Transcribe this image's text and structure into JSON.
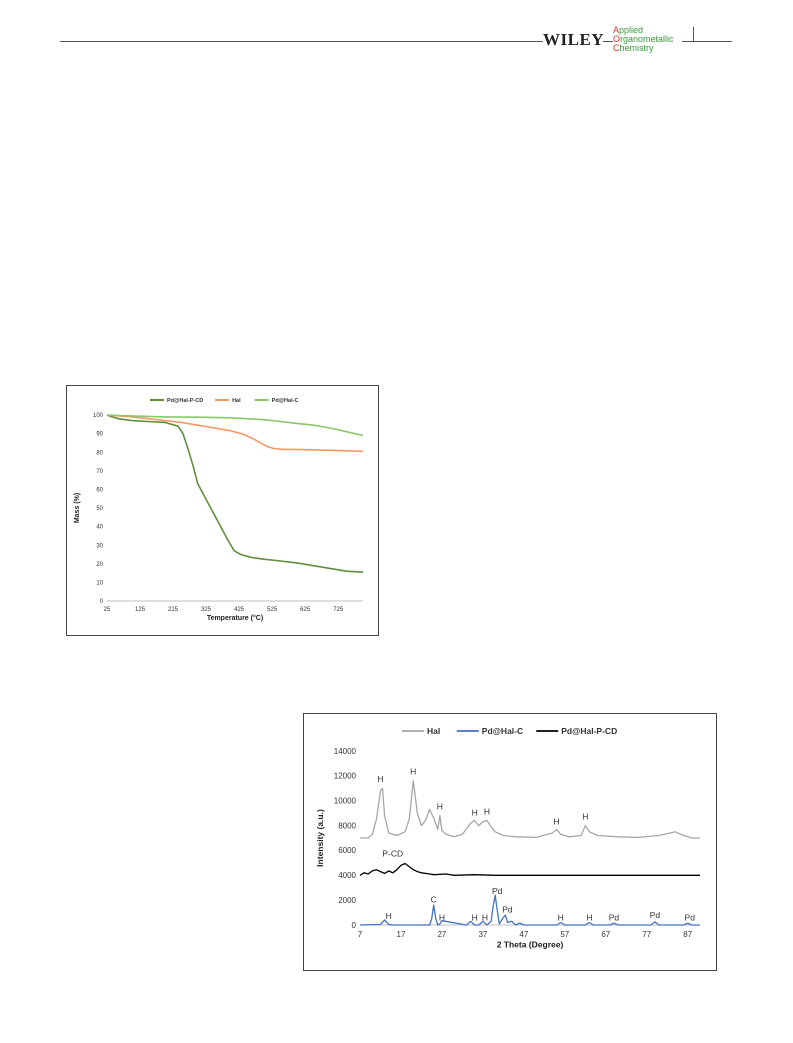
{
  "header": {
    "publisher": "WILEY",
    "journal_lines": [
      "Applied",
      "Organometallic",
      "Chemistry"
    ]
  },
  "chart_data": [
    {
      "type": "line",
      "title": "",
      "xlabel": "Temperature  (°C)",
      "ylabel": "Mass (%)",
      "xlim": [
        25,
        800
      ],
      "ylim": [
        0,
        100
      ],
      "xticks": [
        "25",
        "125",
        "225",
        "325",
        "425",
        "525",
        "625",
        "725"
      ],
      "yticks": [
        "0",
        "10",
        "20",
        "30",
        "40",
        "50",
        "60",
        "70",
        "80",
        "90",
        "100"
      ],
      "legend_position": "top",
      "series": [
        {
          "name": "Pd@Hal-P-CD",
          "color": "#5f8f3d",
          "x": [
            25,
            40,
            60,
            80,
            100,
            150,
            200,
            240,
            255,
            270,
            285,
            300,
            330,
            360,
            390,
            410,
            430,
            460,
            500,
            550,
            600,
            650,
            700,
            750,
            800
          ],
          "y": [
            100,
            99,
            98,
            97.5,
            97,
            96.5,
            96,
            94,
            90,
            82,
            73,
            63,
            53,
            43,
            33,
            27,
            25,
            23.5,
            22.5,
            21.5,
            20.5,
            19,
            17.5,
            16,
            15.5
          ]
        },
        {
          "name": "Hal",
          "color": "#f39a63",
          "x": [
            25,
            60,
            100,
            150,
            200,
            250,
            300,
            350,
            400,
            440,
            470,
            490,
            510,
            530,
            560,
            600,
            700,
            800
          ],
          "y": [
            100,
            99.5,
            99,
            98,
            97,
            96,
            94.5,
            93,
            91.5,
            89.5,
            87,
            85,
            83,
            82,
            81.5,
            81.5,
            81,
            80.5
          ]
        },
        {
          "name": "Pd@Hal-C",
          "color": "#8dc56a",
          "x": [
            25,
            100,
            200,
            300,
            400,
            500,
            550,
            600,
            650,
            700,
            750,
            800
          ],
          "y": [
            100,
            99.5,
            99,
            98.8,
            98.5,
            97.5,
            96.5,
            95.5,
            94.5,
            93,
            91,
            89
          ]
        }
      ]
    },
    {
      "type": "line",
      "title": "",
      "xlabel": "2 Theta (Degree)",
      "ylabel": "Intensity (a.u.)",
      "xlim": [
        7,
        90
      ],
      "ylim": [
        0,
        14000
      ],
      "xticks": [
        "7",
        "17",
        "27",
        "37",
        "47",
        "57",
        "67",
        "77",
        "87"
      ],
      "yticks": [
        "0",
        "2000",
        "4000",
        "6000",
        "8000",
        "10000",
        "12000",
        "14000"
      ],
      "legend_position": "top",
      "series": [
        {
          "name": "Hal",
          "color": "#a6a6a6",
          "x": [
            7,
            9,
            10,
            11,
            12,
            12.5,
            13,
            14,
            16,
            18,
            19,
            20,
            21,
            22,
            23,
            24,
            25,
            26,
            26.5,
            27,
            28,
            30,
            32,
            34,
            35,
            36,
            37,
            38,
            39,
            40,
            42,
            45,
            50,
            54,
            55,
            56,
            58,
            61,
            62,
            63,
            65,
            70,
            75,
            80,
            84,
            86,
            88,
            90
          ],
          "y": [
            7000,
            7000,
            7300,
            8500,
            10800,
            11000,
            8800,
            7400,
            7200,
            7500,
            8500,
            11600,
            9000,
            8000,
            8400,
            9300,
            8600,
            7700,
            8800,
            7600,
            7300,
            7100,
            7300,
            8200,
            8400,
            8000,
            8300,
            8400,
            7900,
            7500,
            7200,
            7100,
            7050,
            7400,
            7700,
            7300,
            7100,
            7200,
            8000,
            7500,
            7200,
            7100,
            7050,
            7200,
            7500,
            7200,
            7000,
            7000
          ]
        },
        {
          "name": "Pd@Hal-C",
          "color": "#4472c4",
          "x": [
            7,
            12,
            13,
            14,
            15,
            20,
            24,
            24.5,
            25,
            25.5,
            26,
            26.5,
            27,
            33,
            34,
            35,
            36,
            37,
            38,
            39,
            39.5,
            40,
            40.5,
            41,
            42,
            42.5,
            43,
            44,
            45,
            46,
            47,
            55,
            56,
            57,
            62,
            63,
            64,
            68,
            69,
            70,
            78,
            79,
            80,
            86,
            87,
            88,
            90
          ],
          "y": [
            0,
            50,
            400,
            50,
            0,
            0,
            0,
            500,
            1600,
            500,
            0,
            100,
            350,
            0,
            300,
            0,
            0,
            300,
            0,
            300,
            1500,
            2400,
            1200,
            100,
            600,
            800,
            200,
            300,
            0,
            150,
            0,
            0,
            200,
            0,
            0,
            200,
            0,
            0,
            150,
            0,
            0,
            250,
            0,
            0,
            150,
            0,
            0
          ]
        },
        {
          "name": "Pd@Hal-P-CD",
          "color": "#000000",
          "x": [
            7,
            8,
            9,
            10,
            11,
            12,
            13,
            14,
            15,
            16,
            17,
            18,
            19,
            20,
            21,
            22,
            23,
            24,
            25,
            28,
            30,
            35,
            40,
            50,
            60,
            70,
            80,
            90
          ],
          "y": [
            4000,
            4200,
            4100,
            4350,
            4450,
            4300,
            4150,
            4350,
            4200,
            4450,
            4800,
            4950,
            4700,
            4450,
            4300,
            4200,
            4150,
            4100,
            4050,
            4100,
            4000,
            4050,
            4000,
            4000,
            4000,
            4000,
            4000,
            4000
          ]
        }
      ],
      "annotations": [
        {
          "text": "H",
          "x": 12,
          "y": 11500
        },
        {
          "text": "H",
          "x": 20,
          "y": 12100
        },
        {
          "text": "H",
          "x": 26.5,
          "y": 9300
        },
        {
          "text": "H",
          "x": 35,
          "y": 8800
        },
        {
          "text": "H",
          "x": 38,
          "y": 8900
        },
        {
          "text": "H",
          "x": 55,
          "y": 8100
        },
        {
          "text": "H",
          "x": 62,
          "y": 8500
        },
        {
          "text": "P-CD",
          "x": 15,
          "y": 5500
        },
        {
          "text": "H",
          "x": 14,
          "y": 500
        },
        {
          "text": "C",
          "x": 25,
          "y": 1800
        },
        {
          "text": "H",
          "x": 27,
          "y": 350
        },
        {
          "text": "H",
          "x": 35,
          "y": 350
        },
        {
          "text": "H",
          "x": 37.5,
          "y": 350
        },
        {
          "text": "Pd",
          "x": 40.5,
          "y": 2500
        },
        {
          "text": "Pd",
          "x": 43,
          "y": 1000
        },
        {
          "text": "H",
          "x": 56,
          "y": 350
        },
        {
          "text": "H",
          "x": 63,
          "y": 350
        },
        {
          "text": "Pd",
          "x": 69,
          "y": 350
        },
        {
          "text": "Pd",
          "x": 79,
          "y": 550
        },
        {
          "text": "Pd",
          "x": 87.5,
          "y": 350
        }
      ]
    }
  ]
}
